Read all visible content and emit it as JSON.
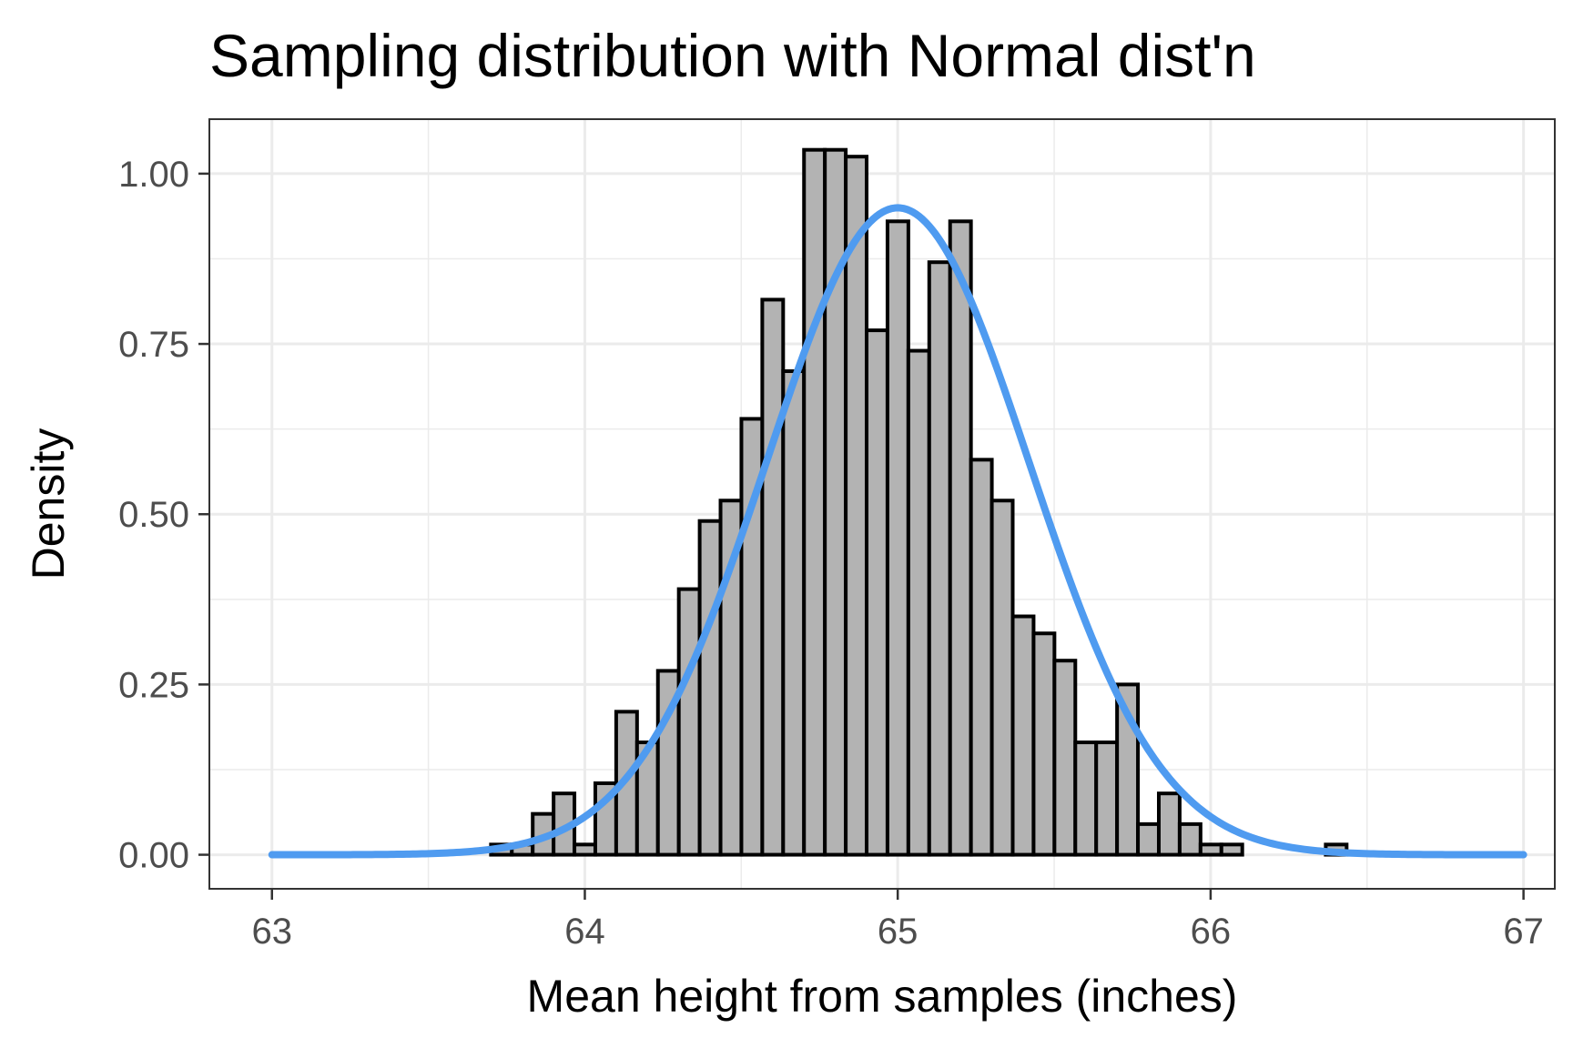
{
  "chart_data": {
    "type": "bar",
    "title": "Sampling distribution with Normal dist'n",
    "xlabel": "Mean height from samples (inches)",
    "ylabel": "Density",
    "xlim": [
      62.8,
      67.1
    ],
    "ylim": [
      -0.05,
      1.08
    ],
    "x_ticks": [
      63,
      64,
      65,
      66,
      67
    ],
    "x_tick_labels": [
      "63",
      "64",
      "65",
      "66",
      "67"
    ],
    "y_ticks": [
      0,
      0.25,
      0.5,
      0.75,
      1.0
    ],
    "y_tick_labels": [
      "0.00",
      "0.25",
      "0.50",
      "0.75",
      "1.00"
    ],
    "grid": true,
    "histogram": {
      "bin_width": 0.0667,
      "bin_start": 63.7,
      "fill_color": "#b3b3b3",
      "edge_color": "#000000",
      "densities": [
        0.015,
        0.015,
        0.06,
        0.09,
        0.015,
        0.105,
        0.21,
        0.165,
        0.27,
        0.39,
        0.49,
        0.52,
        0.64,
        0.815,
        0.71,
        1.035,
        1.035,
        1.025,
        0.77,
        0.93,
        0.74,
        0.87,
        0.93,
        0.58,
        0.52,
        0.35,
        0.325,
        0.285,
        0.165,
        0.165,
        0.25,
        0.045,
        0.09,
        0.045,
        0.015,
        0.015,
        0,
        0,
        0,
        0,
        0.015
      ]
    },
    "series": [
      {
        "type": "line",
        "distribution": "normal",
        "mean": 65.0,
        "sd": 0.42,
        "x_range": [
          63,
          67
        ],
        "color": "#4f9bf0"
      }
    ]
  }
}
